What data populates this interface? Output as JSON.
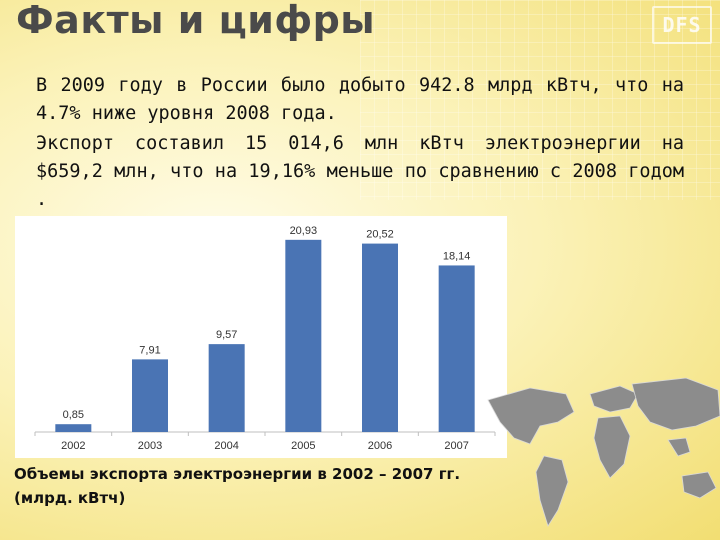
{
  "title": "Факты и цифры",
  "logo_text": "DFS",
  "paragraph1": "В 2009 году в России было добыто 942.8 млрд кВтч, что на 4.7% ниже уровня 2008 года.",
  "paragraph2": "Экспорт составил 15 014,6 млн кВтч электроэнергии на $659,2 млн, что на 19,16% меньше по сравнению с 2008 годом .",
  "caption_line1": "Объемы экспорта электроэнергии в 2002 – 2007 гг.",
  "caption_line2": "(млрд. кВтч)",
  "colors": {
    "bar": "#4a74b4",
    "title": "#4a4a4a",
    "background": "#fbf2b8"
  },
  "chart_data": {
    "type": "bar",
    "categories": [
      "2002",
      "2003",
      "2004",
      "2005",
      "2006",
      "2007"
    ],
    "values": [
      0.85,
      7.91,
      9.57,
      20.93,
      20.52,
      18.14
    ],
    "value_labels": [
      "0,85",
      "7,91",
      "9,57",
      "20,93",
      "20,52",
      "18,14"
    ],
    "ylim": [
      0,
      22
    ],
    "grid": false,
    "legend": "none"
  }
}
